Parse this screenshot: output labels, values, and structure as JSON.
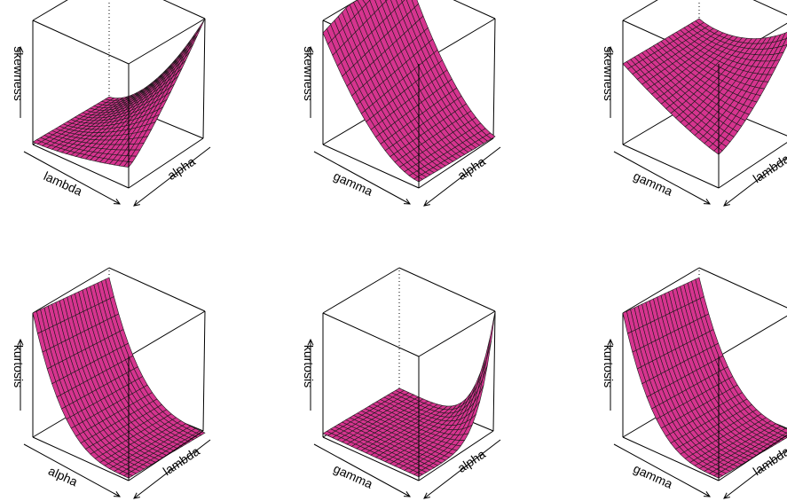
{
  "colors": {
    "surface": "#d6348f",
    "mesh": "#1a1a1a",
    "frame": "#000000",
    "background": "#ffffff"
  },
  "chart_data": [
    {
      "type": "surface3d",
      "zlabel": "skewness",
      "xlabel": "lambda",
      "ylabel": "alpha",
      "grid_size": 20,
      "shape": "concave-up-rising",
      "z_corners": {
        "front_left": 0.05,
        "front_right": 0.15,
        "back_left": 0.05,
        "back_right": 1.0
      }
    },
    {
      "type": "surface3d",
      "zlabel": "skewness",
      "xlabel": "gamma",
      "ylabel": "alpha",
      "grid_size": 20,
      "shape": "convex-decay",
      "z_corners": {
        "front_left": 0.85,
        "front_right": 0.05,
        "back_left": 1.0,
        "back_right": 0.2
      }
    },
    {
      "type": "surface3d",
      "zlabel": "skewness",
      "xlabel": "gamma",
      "ylabel": "lambda",
      "grid_size": 20,
      "shape": "saddle-valley",
      "z_corners": {
        "front_left": 0.65,
        "front_right": 0.4,
        "back_left": 0.7,
        "back_right": 0.9
      }
    },
    {
      "type": "surface3d",
      "zlabel": "kurtosis",
      "xlabel": "alpha",
      "ylabel": "lambda",
      "grid_size": 20,
      "shape": "steep-decay",
      "z_corners": {
        "front_left": 1.0,
        "front_right": 0.02,
        "back_left": 0.9,
        "back_right": 0.02
      }
    },
    {
      "type": "surface3d",
      "zlabel": "kurtosis",
      "xlabel": "gamma",
      "ylabel": "alpha",
      "grid_size": 20,
      "shape": "corner-spike",
      "z_corners": {
        "front_left": 0.05,
        "front_right": 0.02,
        "back_left": 0.05,
        "back_right": 1.0
      }
    },
    {
      "type": "surface3d",
      "zlabel": "kurtosis",
      "xlabel": "gamma",
      "ylabel": "lambda",
      "grid_size": 20,
      "shape": "steep-decay",
      "z_corners": {
        "front_left": 1.0,
        "front_right": 0.02,
        "back_left": 0.95,
        "back_right": 0.02
      }
    }
  ]
}
